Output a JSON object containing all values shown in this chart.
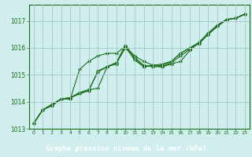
{
  "background_color": "#d0eeee",
  "plot_bg_color": "#d0eeee",
  "grid_color": "#aacccc",
  "line_color": "#1a6e1a",
  "marker_color": "#1a6e1a",
  "xlabel": "Graphe pression niveau de la mer (hPa)",
  "xlabel_bg": "#2e7d2e",
  "xlabel_text_color": "#ffffff",
  "ylim": [
    1013.0,
    1017.6
  ],
  "xlim": [
    -0.5,
    23.5
  ],
  "yticks": [
    1013,
    1014,
    1015,
    1016,
    1017
  ],
  "xticks": [
    0,
    1,
    2,
    3,
    4,
    5,
    6,
    7,
    8,
    9,
    10,
    11,
    12,
    13,
    14,
    15,
    16,
    17,
    18,
    19,
    20,
    21,
    22,
    23
  ],
  "series": [
    [
      1013.2,
      1013.7,
      1013.85,
      1014.1,
      1014.1,
      1015.2,
      1015.5,
      1015.7,
      1015.8,
      1015.8,
      1016.05,
      1015.7,
      1015.5,
      1015.35,
      1015.3,
      1015.4,
      1015.5,
      1015.9,
      1016.2,
      1016.5,
      1016.8,
      1017.05,
      1017.1,
      1017.25
    ],
    [
      1013.2,
      1013.7,
      1013.9,
      1014.1,
      1014.15,
      1014.3,
      1014.4,
      1015.15,
      1015.3,
      1015.4,
      1016.05,
      1015.55,
      1015.3,
      1015.35,
      1015.4,
      1015.5,
      1015.8,
      1016.0,
      1016.15,
      1016.5,
      1016.8,
      1017.05,
      1017.1,
      1017.25
    ],
    [
      1013.2,
      1013.7,
      1013.9,
      1014.1,
      1014.15,
      1014.3,
      1014.45,
      1015.1,
      1015.3,
      1015.45,
      1016.1,
      1015.65,
      1015.35,
      1015.3,
      1015.3,
      1015.45,
      1015.7,
      1015.95,
      1016.2,
      1016.55,
      1016.85,
      1017.05,
      1017.1,
      1017.25
    ],
    [
      1013.2,
      1013.7,
      1013.9,
      1014.1,
      1014.15,
      1014.35,
      1014.45,
      1014.5,
      1015.3,
      1015.45,
      1016.0,
      1015.6,
      1015.3,
      1015.35,
      1015.35,
      1015.5,
      1015.8,
      1016.0,
      1016.2,
      1016.5,
      1016.8,
      1017.05,
      1017.1,
      1017.25
    ]
  ]
}
